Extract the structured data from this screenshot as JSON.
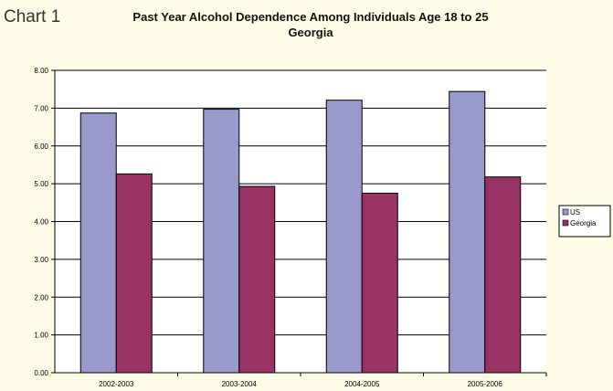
{
  "header": {
    "chart_label": "Chart 1",
    "title_line1": "Past Year Alcohol Dependence Among Individuals Age 18 to 25",
    "title_line2": "Georgia"
  },
  "chart_data": {
    "type": "bar",
    "categories": [
      "2002-2003",
      "2003-2004",
      "2004-2005",
      "2005-2006"
    ],
    "series": [
      {
        "name": "US",
        "values": [
          6.87,
          6.97,
          7.21,
          7.44
        ],
        "color": "#9999cc"
      },
      {
        "name": "Georgia",
        "values": [
          5.26,
          4.93,
          4.75,
          5.18
        ],
        "color": "#993366"
      }
    ],
    "ylim": [
      0,
      8
    ],
    "yticks": [
      "0.00",
      "1.00",
      "2.00",
      "3.00",
      "4.00",
      "5.00",
      "6.00",
      "7.00",
      "8.00"
    ],
    "grid": true,
    "legend_position": "right",
    "plot_background": "#ffffff",
    "page_background": "#fffbe6"
  }
}
